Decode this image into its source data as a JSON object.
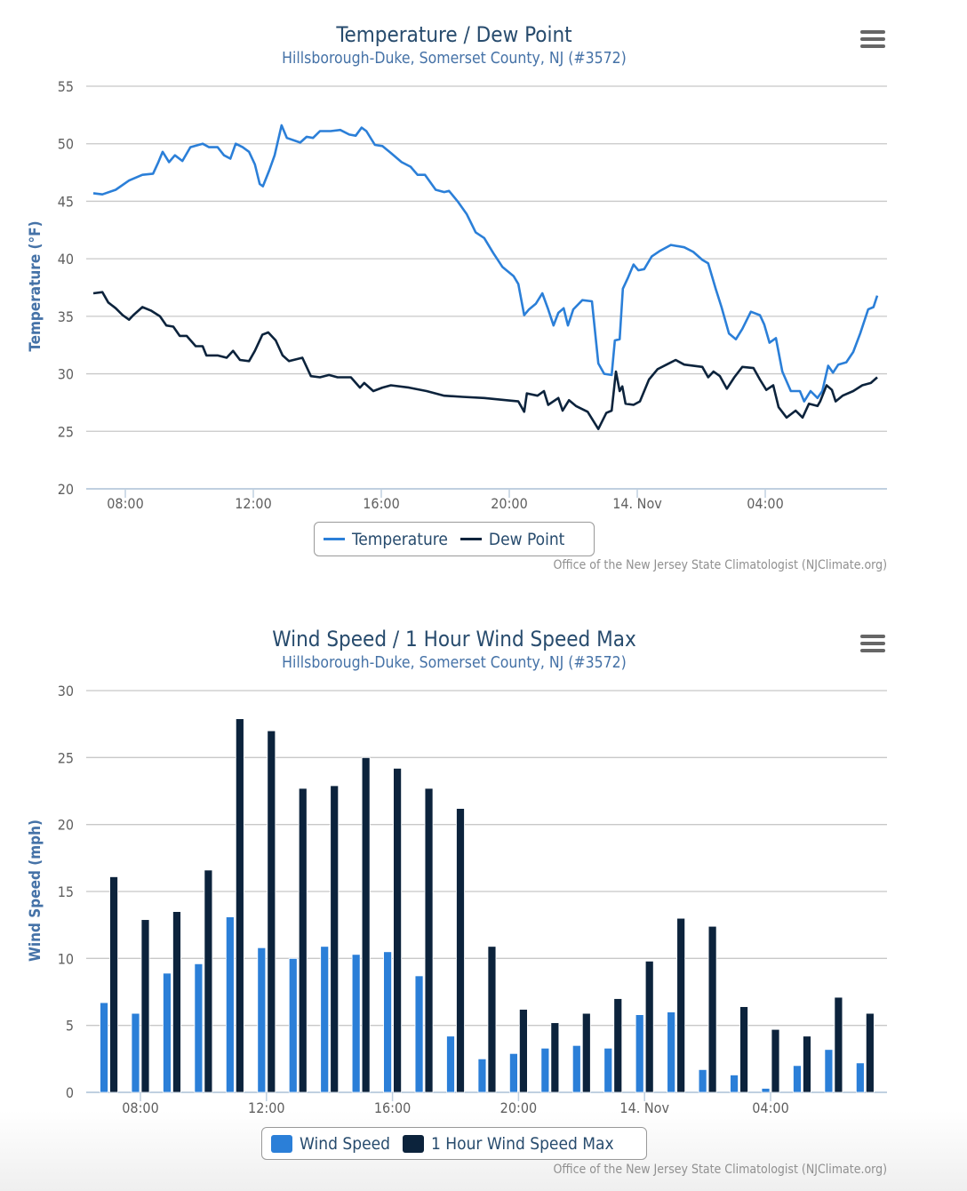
{
  "chart_data": [
    {
      "type": "line",
      "title": "Temperature / Dew Point",
      "subtitle": "Hillsborough-Duke, Somerset County, NJ (#3572)",
      "xlabel": "",
      "ylabel": "Temperature (°F)",
      "ylim": [
        20,
        55
      ],
      "yticks": [
        20,
        25,
        30,
        35,
        40,
        45,
        50,
        55
      ],
      "xticks": [
        "08:00",
        "12:00",
        "16:00",
        "20:00",
        "14. Nov",
        "04:00"
      ],
      "grid": true,
      "legend": "bottom-center",
      "credits": "Office of the New Jersey State Climatologist (NJClimate.org)",
      "series": [
        {
          "name": "Temperature",
          "color": "#2b7fd8",
          "points": [
            [
              "07:00",
              45.7
            ],
            [
              "07:17",
              45.6
            ],
            [
              "07:42",
              46.0
            ],
            [
              "08:07",
              46.8
            ],
            [
              "08:32",
              47.3
            ],
            [
              "08:52",
              47.4
            ],
            [
              "09:02",
              48.4
            ],
            [
              "09:10",
              49.3
            ],
            [
              "09:22",
              48.4
            ],
            [
              "09:33",
              49.0
            ],
            [
              "09:47",
              48.5
            ],
            [
              "10:02",
              49.7
            ],
            [
              "10:25",
              50.0
            ],
            [
              "10:37",
              49.7
            ],
            [
              "10:53",
              49.7
            ],
            [
              "11:05",
              49.0
            ],
            [
              "11:17",
              48.7
            ],
            [
              "11:27",
              50.0
            ],
            [
              "11:40",
              49.7
            ],
            [
              "11:52",
              49.3
            ],
            [
              "12:03",
              48.2
            ],
            [
              "12:12",
              46.5
            ],
            [
              "12:18",
              46.3
            ],
            [
              "12:30",
              47.7
            ],
            [
              "12:40",
              49.0
            ],
            [
              "12:53",
              51.6
            ],
            [
              "13:03",
              50.5
            ],
            [
              "13:28",
              50.1
            ],
            [
              "13:40",
              50.6
            ],
            [
              "13:52",
              50.5
            ],
            [
              "14:05",
              51.1
            ],
            [
              "14:25",
              51.1
            ],
            [
              "14:43",
              51.2
            ],
            [
              "15:00",
              50.8
            ],
            [
              "15:12",
              50.7
            ],
            [
              "15:23",
              51.4
            ],
            [
              "15:32",
              51.1
            ],
            [
              "15:48",
              49.9
            ],
            [
              "16:02",
              49.8
            ],
            [
              "16:18",
              49.2
            ],
            [
              "16:38",
              48.4
            ],
            [
              "16:55",
              48.0
            ],
            [
              "17:08",
              47.3
            ],
            [
              "17:22",
              47.3
            ],
            [
              "17:42",
              46.0
            ],
            [
              "17:58",
              45.8
            ],
            [
              "18:07",
              45.9
            ],
            [
              "18:23",
              45.0
            ],
            [
              "18:40",
              43.9
            ],
            [
              "18:57",
              42.3
            ],
            [
              "19:13",
              41.8
            ],
            [
              "19:30",
              40.5
            ],
            [
              "19:47",
              39.3
            ],
            [
              "20:08",
              38.5
            ],
            [
              "20:17",
              37.8
            ],
            [
              "20:28",
              35.1
            ],
            [
              "20:37",
              35.6
            ],
            [
              "20:50",
              36.1
            ],
            [
              "21:02",
              37.0
            ],
            [
              "21:13",
              35.6
            ],
            [
              "21:23",
              34.2
            ],
            [
              "21:32",
              35.3
            ],
            [
              "21:42",
              35.7
            ],
            [
              "21:50",
              34.2
            ],
            [
              "22:00",
              35.6
            ],
            [
              "22:17",
              36.4
            ],
            [
              "22:35",
              36.3
            ],
            [
              "22:47",
              30.9
            ],
            [
              "22:58",
              30.0
            ],
            [
              "23:12",
              29.9
            ],
            [
              "23:18",
              32.9
            ],
            [
              "23:27",
              33.0
            ],
            [
              "23:33",
              37.4
            ],
            [
              "23:43",
              38.4
            ],
            [
              "23:53",
              39.5
            ],
            [
              "00:02",
              39.0
            ],
            [
              "00:13",
              39.1
            ],
            [
              "00:27",
              40.2
            ],
            [
              "00:43",
              40.7
            ],
            [
              "01:03",
              41.2
            ],
            [
              "01:28",
              41.0
            ],
            [
              "01:45",
              40.6
            ],
            [
              "02:02",
              39.9
            ],
            [
              "02:13",
              39.6
            ],
            [
              "02:27",
              37.4
            ],
            [
              "02:38",
              35.8
            ],
            [
              "02:52",
              33.5
            ],
            [
              "03:05",
              33.0
            ],
            [
              "03:17",
              33.9
            ],
            [
              "03:33",
              35.4
            ],
            [
              "03:50",
              35.1
            ],
            [
              "03:58",
              34.3
            ],
            [
              "04:08",
              32.7
            ],
            [
              "04:20",
              33.1
            ],
            [
              "04:32",
              30.2
            ],
            [
              "04:48",
              28.5
            ],
            [
              "05:05",
              28.5
            ],
            [
              "05:13",
              27.6
            ],
            [
              "05:25",
              28.5
            ],
            [
              "05:38",
              27.9
            ],
            [
              "05:47",
              28.5
            ],
            [
              "05:58",
              30.7
            ],
            [
              "06:07",
              30.1
            ],
            [
              "06:17",
              30.8
            ],
            [
              "06:32",
              31.0
            ],
            [
              "06:45",
              31.9
            ],
            [
              "06:58",
              33.5
            ],
            [
              "07:13",
              35.6
            ],
            [
              "07:23",
              35.8
            ],
            [
              "07:30",
              36.8
            ]
          ]
        },
        {
          "name": "Dew Point",
          "color": "#0c233c",
          "points": [
            [
              "07:00",
              37.0
            ],
            [
              "07:17",
              37.1
            ],
            [
              "07:28",
              36.2
            ],
            [
              "07:42",
              35.7
            ],
            [
              "07:55",
              35.1
            ],
            [
              "08:07",
              34.7
            ],
            [
              "08:15",
              35.1
            ],
            [
              "08:32",
              35.8
            ],
            [
              "08:48",
              35.5
            ],
            [
              "09:05",
              35.0
            ],
            [
              "09:17",
              34.2
            ],
            [
              "09:30",
              34.1
            ],
            [
              "09:42",
              33.3
            ],
            [
              "09:55",
              33.3
            ],
            [
              "10:12",
              32.4
            ],
            [
              "10:25",
              32.4
            ],
            [
              "10:32",
              31.6
            ],
            [
              "10:53",
              31.6
            ],
            [
              "11:10",
              31.4
            ],
            [
              "11:22",
              32.0
            ],
            [
              "11:35",
              31.2
            ],
            [
              "11:52",
              31.1
            ],
            [
              "12:03",
              32.0
            ],
            [
              "12:17",
              33.4
            ],
            [
              "12:28",
              33.6
            ],
            [
              "12:42",
              32.9
            ],
            [
              "12:55",
              31.6
            ],
            [
              "13:07",
              31.1
            ],
            [
              "13:32",
              31.4
            ],
            [
              "13:48",
              29.8
            ],
            [
              "14:05",
              29.7
            ],
            [
              "14:22",
              29.9
            ],
            [
              "14:38",
              29.7
            ],
            [
              "15:03",
              29.7
            ],
            [
              "15:20",
              28.8
            ],
            [
              "15:28",
              29.2
            ],
            [
              "15:45",
              28.5
            ],
            [
              "16:02",
              28.8
            ],
            [
              "16:18",
              29.0
            ],
            [
              "16:52",
              28.8
            ],
            [
              "17:25",
              28.5
            ],
            [
              "17:58",
              28.1
            ],
            [
              "18:32",
              28.0
            ],
            [
              "19:13",
              27.9
            ],
            [
              "19:55",
              27.7
            ],
            [
              "20:17",
              27.6
            ],
            [
              "20:28",
              26.7
            ],
            [
              "20:33",
              28.3
            ],
            [
              "20:53",
              28.1
            ],
            [
              "21:05",
              28.5
            ],
            [
              "21:13",
              27.3
            ],
            [
              "21:32",
              27.9
            ],
            [
              "21:40",
              26.8
            ],
            [
              "21:52",
              27.7
            ],
            [
              "22:05",
              27.2
            ],
            [
              "22:27",
              26.7
            ],
            [
              "22:47",
              25.2
            ],
            [
              "23:02",
              26.6
            ],
            [
              "23:12",
              26.8
            ],
            [
              "23:20",
              30.2
            ],
            [
              "23:27",
              28.5
            ],
            [
              "23:32",
              28.9
            ],
            [
              "23:38",
              27.4
            ],
            [
              "23:53",
              27.3
            ],
            [
              "00:05",
              27.6
            ],
            [
              "00:22",
              29.5
            ],
            [
              "00:38",
              30.4
            ],
            [
              "00:55",
              30.8
            ],
            [
              "01:12",
              31.2
            ],
            [
              "01:28",
              30.8
            ],
            [
              "02:02",
              30.6
            ],
            [
              "02:13",
              29.7
            ],
            [
              "02:23",
              30.2
            ],
            [
              "02:35",
              29.8
            ],
            [
              "02:48",
              28.7
            ],
            [
              "03:02",
              29.7
            ],
            [
              "03:17",
              30.6
            ],
            [
              "03:38",
              30.5
            ],
            [
              "03:50",
              29.5
            ],
            [
              "04:02",
              28.6
            ],
            [
              "04:15",
              29.0
            ],
            [
              "04:25",
              27.1
            ],
            [
              "04:40",
              26.2
            ],
            [
              "04:57",
              26.8
            ],
            [
              "05:10",
              26.2
            ],
            [
              "05:22",
              27.4
            ],
            [
              "05:38",
              27.2
            ],
            [
              "05:43",
              27.6
            ],
            [
              "05:55",
              29.0
            ],
            [
              "06:05",
              28.6
            ],
            [
              "06:12",
              27.6
            ],
            [
              "06:25",
              28.1
            ],
            [
              "06:45",
              28.5
            ],
            [
              "07:02",
              29.0
            ],
            [
              "07:18",
              29.2
            ],
            [
              "07:30",
              29.7
            ]
          ]
        }
      ]
    },
    {
      "type": "bar",
      "title": "Wind Speed / 1 Hour Wind Speed Max",
      "subtitle": "Hillsborough-Duke, Somerset County, NJ (#3572)",
      "xlabel": "",
      "ylabel": "Wind Speed (mph)",
      "ylim": [
        0,
        30
      ],
      "yticks": [
        0,
        5,
        10,
        15,
        20,
        25,
        30
      ],
      "xticks": [
        "08:00",
        "12:00",
        "16:00",
        "20:00",
        "14. Nov",
        "04:00"
      ],
      "grid": true,
      "legend": "bottom-center",
      "credits": "Office of the New Jersey State Climatologist (NJClimate.org)",
      "categories": [
        "07:00",
        "08:00",
        "09:00",
        "10:00",
        "11:00",
        "12:00",
        "13:00",
        "14:00",
        "15:00",
        "16:00",
        "17:00",
        "18:00",
        "19:00",
        "20:00",
        "21:00",
        "22:00",
        "23:00",
        "00:00",
        "01:00",
        "02:00",
        "03:00",
        "04:00",
        "05:00",
        "06:00",
        "07:00"
      ],
      "series": [
        {
          "name": "Wind Speed",
          "color": "#2b7fd8",
          "values": [
            6.7,
            5.9,
            8.9,
            9.6,
            13.1,
            10.8,
            10.0,
            10.9,
            10.3,
            10.5,
            8.7,
            4.2,
            2.5,
            2.9,
            3.3,
            3.5,
            3.3,
            5.8,
            6.0,
            1.7,
            1.3,
            0.3,
            2.0,
            3.2,
            2.2
          ]
        },
        {
          "name": "1 Hour Wind Speed Max",
          "color": "#0c233c",
          "values": [
            16.1,
            12.9,
            13.5,
            16.6,
            27.9,
            27.0,
            22.7,
            22.9,
            25.0,
            24.2,
            22.7,
            21.2,
            10.9,
            6.2,
            5.2,
            5.9,
            7.0,
            9.8,
            13.0,
            12.4,
            6.4,
            4.7,
            4.2,
            7.1,
            5.9
          ]
        }
      ]
    }
  ]
}
